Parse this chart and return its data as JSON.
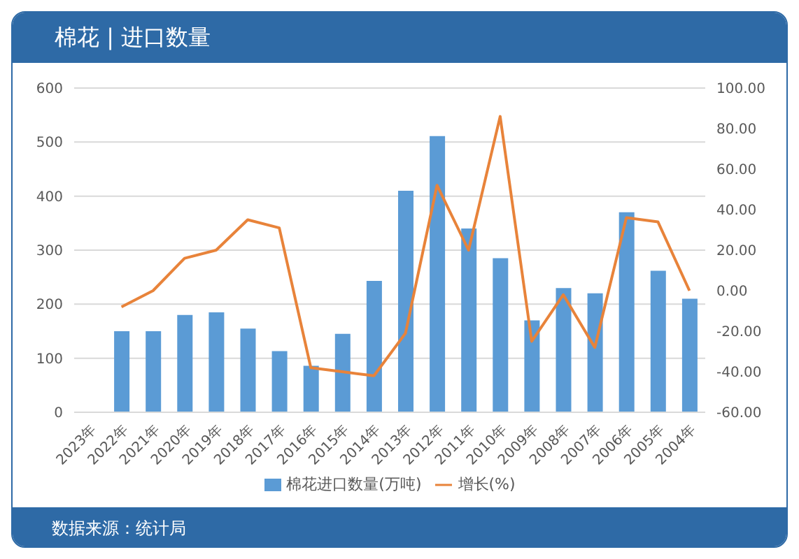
{
  "chart_data": {
    "type": "bar",
    "title": "棉花 | 进口数量",
    "categories": [
      "2023年",
      "2022年",
      "2021年",
      "2020年",
      "2019年",
      "2018年",
      "2017年",
      "2016年",
      "2015年",
      "2014年",
      "2013年",
      "2012年",
      "2011年",
      "2010年",
      "2009年",
      "2008年",
      "2007年",
      "2006年",
      "2005年",
      "2004年"
    ],
    "series": [
      {
        "name": "棉花进口数量(万吨)",
        "color": "#5b9bd5",
        "values": [
          null,
          150,
          150,
          180,
          185,
          155,
          113,
          86,
          145,
          243,
          410,
          511,
          340,
          285,
          170,
          230,
          220,
          370,
          262,
          210
        ]
      },
      {
        "name": "增长(%)",
        "type": "line",
        "axis": "y2",
        "color": "#e8833a",
        "values": [
          null,
          -8,
          0,
          16,
          20,
          35,
          31,
          -38,
          -40,
          -42,
          -21,
          52,
          20,
          86,
          -25,
          -2,
          -28,
          36,
          34,
          0
        ]
      }
    ],
    "ylim": [
      0,
      600
    ],
    "yticks": [
      0,
      100,
      200,
      300,
      400,
      500,
      600
    ],
    "y2lim": [
      -60,
      100
    ],
    "y2ticks": [
      {
        "value": -60,
        "label": "-60.00"
      },
      {
        "value": -40,
        "label": "-40.00"
      },
      {
        "value": -20,
        "label": "-20.00"
      },
      {
        "value": 0,
        "label": "0.00"
      },
      {
        "value": 20,
        "label": "20.00"
      },
      {
        "value": 40,
        "label": "40.00"
      },
      {
        "value": 60,
        "label": "60.00"
      },
      {
        "value": 80,
        "label": "80.00"
      },
      {
        "value": 100,
        "label": "100.00"
      }
    ],
    "grid": "y",
    "legend": "bottom",
    "marker": "none",
    "line_style": "solid",
    "annotations": [
      "数据来源：统计局"
    ]
  }
}
